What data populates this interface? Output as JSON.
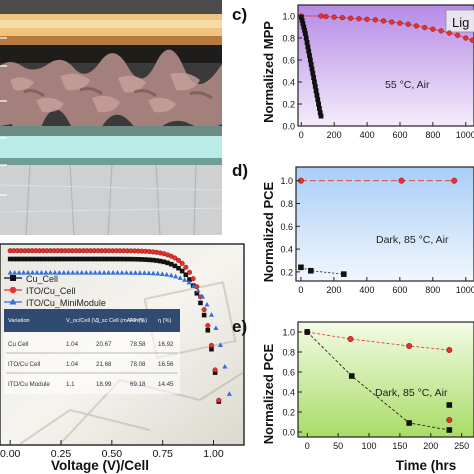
{
  "figure": {
    "panels": {
      "c": "c)",
      "d": "d)",
      "e": "e)"
    }
  },
  "colors": {
    "cu": "#111111",
    "ito": "#e8302c",
    "module": "#2f6fe0",
    "panel_c_bg": "#d4b8ee",
    "panel_d_bg": "#cde3fb",
    "panel_e_bg": "#c9ec9f"
  },
  "chart_data": [
    {
      "id": "jv",
      "type": "line",
      "xlabel": "Voltage (V)/Cell",
      "ylabel": "",
      "xlim": [
        -0.05,
        1.15
      ],
      "ylim": [
        -2,
        22.5
      ],
      "x_ticks": [
        "0.00",
        "0.25",
        "0.50",
        "0.75",
        "1.00"
      ],
      "x_tick_values": [
        0,
        0.25,
        0.5,
        0.75,
        1.0
      ],
      "legend": [
        "Cu_Cell",
        "ITO/Cu_Cell",
        "ITO/Cu_MiniModule"
      ],
      "legend_position": "top-left",
      "series": [
        {
          "name": "Cu_Cell",
          "color": "#111111",
          "marker": "square",
          "voc": 1.04,
          "jsc": 20.67,
          "ff": 78.58
        },
        {
          "name": "ITO/Cu_Cell",
          "color": "#e8302c",
          "marker": "circle",
          "voc": 1.04,
          "jsc": 21.68,
          "ff": 78.08
        },
        {
          "name": "ITO/Cu_MiniModule",
          "color": "#2f6fe0",
          "marker": "triangle",
          "voc": 1.1,
          "jsc": 18.99,
          "ff": 69.18
        }
      ],
      "table": {
        "headers": [
          "Variation",
          "V_oc/Cell (V)",
          "J_sc Cell (mA/cm²)",
          "FF (%)",
          "η (%)"
        ],
        "rows": [
          [
            "Cu Cell",
            "1.04",
            "20.67",
            "78.58",
            "16.92"
          ],
          [
            "ITO/Cu Cell",
            "1.04",
            "21.68",
            "78.08",
            "16.56"
          ],
          [
            "ITO/Cu Module",
            "1.1",
            "18.99",
            "69.18",
            "14.45"
          ]
        ]
      }
    },
    {
      "id": "c",
      "type": "line",
      "ylabel": "Normalized MPP",
      "title": "",
      "legend_fragment": "Lig",
      "annotation": "55 °C, Air",
      "xlim": [
        -20,
        1050
      ],
      "ylim": [
        0,
        1.1
      ],
      "x_ticks": [
        "0",
        "200",
        "400",
        "600",
        "800",
        "1000"
      ],
      "x_tick_values": [
        0,
        200,
        400,
        600,
        800,
        1000
      ],
      "y_ticks": [
        "0.0",
        "0.2",
        "0.4",
        "0.6",
        "0.8",
        "1.0"
      ],
      "y_tick_values": [
        0,
        0.2,
        0.4,
        0.6,
        0.8,
        1.0
      ],
      "series": [
        {
          "name": "",
          "color": "#e8302c",
          "marker": "circle",
          "x": [
            0,
            120,
            150,
            200,
            250,
            300,
            350,
            400,
            450,
            500,
            550,
            600,
            650,
            700,
            750,
            800,
            850,
            900,
            950,
            1000,
            1040
          ],
          "y": [
            1.0,
            1.0,
            0.995,
            0.99,
            0.985,
            0.98,
            0.975,
            0.97,
            0.965,
            0.955,
            0.945,
            0.935,
            0.925,
            0.91,
            0.895,
            0.88,
            0.865,
            0.845,
            0.825,
            0.8,
            0.78
          ]
        },
        {
          "name": "",
          "color": "#111111",
          "marker": "square",
          "x": [
            0,
            5,
            10,
            15,
            20,
            25,
            30,
            35,
            40,
            45,
            50,
            55,
            60,
            65,
            70,
            75,
            80,
            85,
            90,
            95,
            100,
            105,
            110,
            115,
            120
          ],
          "y": [
            0.99,
            0.96,
            0.93,
            0.9,
            0.87,
            0.84,
            0.8,
            0.76,
            0.72,
            0.68,
            0.64,
            0.6,
            0.56,
            0.52,
            0.48,
            0.44,
            0.4,
            0.36,
            0.32,
            0.28,
            0.24,
            0.2,
            0.16,
            0.12,
            0.09
          ]
        }
      ]
    },
    {
      "id": "d",
      "type": "scatter",
      "ylabel": "Normalized PCE",
      "annotation": "Dark, 85 °C, Air",
      "xlim": [
        -30,
        1050
      ],
      "ylim": [
        0.12,
        1.12
      ],
      "x_ticks": [
        "0",
        "200",
        "400",
        "600",
        "800",
        "1000"
      ],
      "x_tick_values": [
        0,
        200,
        400,
        600,
        800,
        1000
      ],
      "y_ticks": [
        "0.2",
        "0.4",
        "0.6",
        "0.8",
        "1.0"
      ],
      "y_tick_values": [
        0.2,
        0.4,
        0.6,
        0.8,
        1.0
      ],
      "series": [
        {
          "name": "",
          "color": "#e8302c",
          "marker": "circle",
          "x": [
            0,
            610,
            930
          ],
          "y": [
            1.0,
            1.0,
            1.0
          ]
        },
        {
          "name": "",
          "color": "#111111",
          "marker": "square",
          "x": [
            0,
            60,
            260
          ],
          "y": [
            0.24,
            0.21,
            0.18
          ]
        }
      ]
    },
    {
      "id": "e",
      "type": "line",
      "ylabel": "Normalized PCE",
      "xlabel": "Time (hrs",
      "annotation": "Dark, 85 °C, Air",
      "xlim": [
        -15,
        270
      ],
      "ylim": [
        -0.05,
        1.1
      ],
      "x_ticks": [
        "0",
        "50",
        "100",
        "150",
        "200",
        "250"
      ],
      "x_tick_values": [
        0,
        50,
        100,
        150,
        200,
        250
      ],
      "y_ticks": [
        "0.0",
        "0.2",
        "0.4",
        "0.6",
        "0.8",
        "1.0"
      ],
      "y_tick_values": [
        0,
        0.2,
        0.4,
        0.6,
        0.8,
        1.0
      ],
      "series": [
        {
          "name": "",
          "color": "#e8302c",
          "marker": "circle",
          "x": [
            0,
            70,
            165,
            230
          ],
          "y": [
            1.0,
            0.93,
            0.86,
            0.82
          ]
        },
        {
          "name": "",
          "color": "#111111",
          "marker": "square",
          "x": [
            0,
            72,
            165,
            230
          ],
          "y": [
            1.0,
            0.56,
            0.09,
            0.02
          ]
        },
        {
          "name": "",
          "color": "#e8302c",
          "marker": "circle",
          "x": [
            230
          ],
          "y": [
            0.12
          ]
        },
        {
          "name": "",
          "color": "#111111",
          "marker": "square",
          "x": [
            230
          ],
          "y": [
            0.27
          ]
        }
      ]
    }
  ]
}
